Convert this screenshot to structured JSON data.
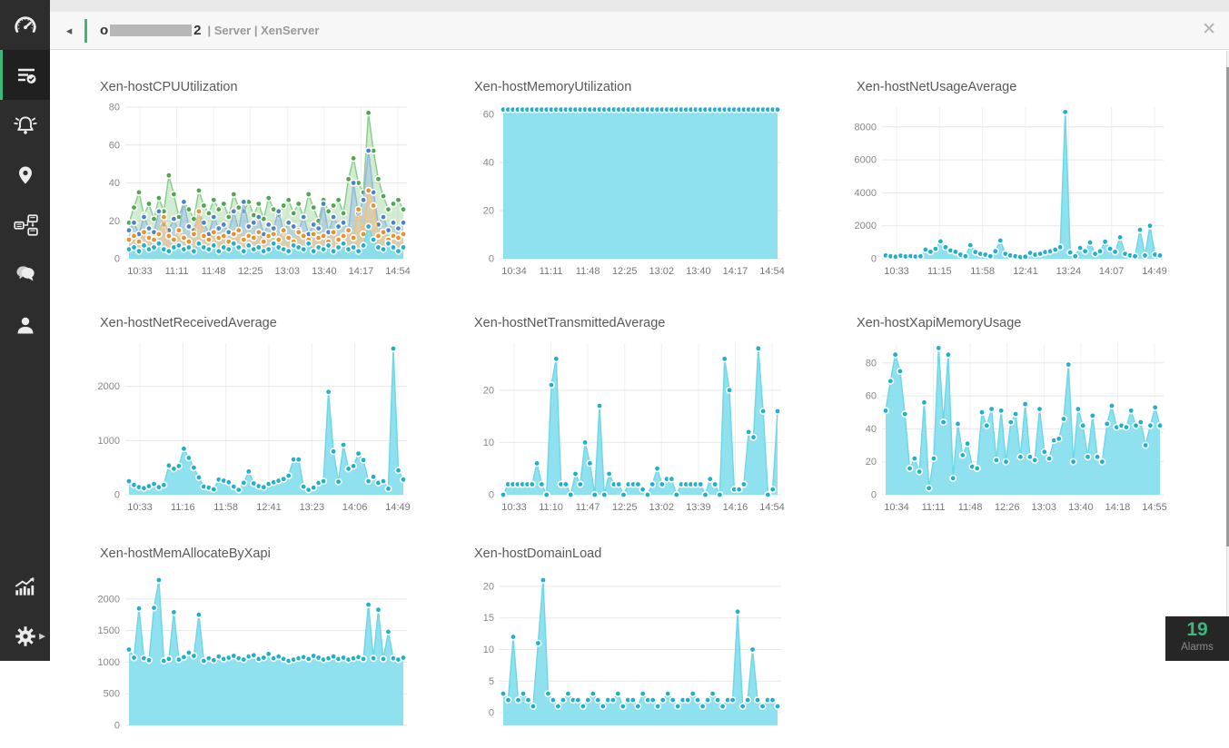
{
  "header": {
    "back_icon": "◂",
    "device_prefix": "o",
    "device_suffix": "2",
    "breadcrumb": "| Server | XenServer",
    "close_icon": "✕"
  },
  "sidebar": {
    "items": [
      {
        "name": "dashboard",
        "icon": "gauge-icon",
        "active": false
      },
      {
        "name": "inventory",
        "icon": "list-check-icon",
        "active": true
      },
      {
        "name": "alarms",
        "icon": "bell-icon",
        "active": false
      },
      {
        "name": "maps",
        "icon": "map-pin-icon",
        "active": false
      },
      {
        "name": "topology",
        "icon": "workflow-icon",
        "active": false
      },
      {
        "name": "chat",
        "icon": "chat-icon",
        "active": false
      },
      {
        "name": "users",
        "icon": "person-icon",
        "active": false
      },
      {
        "name": "reports",
        "icon": "chart-arrow-icon",
        "active": false
      },
      {
        "name": "settings",
        "icon": "gear-icon",
        "active": false
      }
    ]
  },
  "alarms": {
    "count": "19",
    "label": "Alarms"
  },
  "colors": {
    "accent_green": "#3cb878",
    "sidebar_bg": "#2d2d2d",
    "cyan_dot": "#1fb0ce",
    "green_dot": "#4fa84f",
    "blue_dot": "#4a86c5",
    "orange_dot": "#e8912d"
  },
  "chart_data": [
    {
      "type": "area",
      "title": "Xen-hostCPUUtilization",
      "x_labels": [
        "10:33",
        "11:11",
        "11:48",
        "12:25",
        "13:03",
        "13:40",
        "14:17",
        "14:54"
      ],
      "y_ticks": [
        0,
        20,
        40,
        60,
        80
      ],
      "ymin": 0,
      "ymax": 80,
      "series": [
        {
          "name": "green",
          "dot": "#4fa84f",
          "line": "#8ccf8c",
          "fill": "rgba(140,207,140,0.40)",
          "values": [
            19,
            27,
            35,
            23,
            29,
            21,
            32,
            25,
            44,
            34,
            22,
            30,
            26,
            21,
            36,
            28,
            24,
            31,
            26,
            29,
            22,
            34,
            27,
            25,
            30,
            23,
            29,
            21,
            32,
            26,
            23,
            28,
            31,
            24,
            29,
            22,
            34,
            27,
            20,
            31,
            25,
            28,
            31,
            24,
            42,
            53,
            40,
            35,
            77,
            57,
            42,
            33,
            26,
            29,
            31,
            26
          ]
        },
        {
          "name": "blue",
          "dot": "#4a86c5",
          "line": "#92b9e0",
          "fill": "rgba(146,185,224,0.45)",
          "values": [
            15,
            19,
            13,
            22,
            16,
            14,
            25,
            18,
            15,
            21,
            14,
            30,
            17,
            15,
            24,
            19,
            13,
            22,
            16,
            18,
            14,
            25,
            15,
            30,
            17,
            19,
            22,
            13,
            18,
            16,
            25,
            14,
            19,
            17,
            15,
            22,
            13,
            18,
            16,
            29,
            14,
            22,
            17,
            19,
            15,
            40,
            24,
            31,
            57,
            35,
            18,
            22,
            15,
            19,
            16,
            19
          ]
        },
        {
          "name": "orange",
          "dot": "#e8912d",
          "line": "#f3c07c",
          "fill": "rgba(247,199,138,0.55)",
          "values": [
            10,
            12,
            9,
            14,
            11,
            10,
            13,
            22,
            12,
            10,
            15,
            11,
            9,
            13,
            25,
            12,
            10,
            14,
            11,
            12,
            9,
            13,
            15,
            10,
            12,
            11,
            14,
            9,
            12,
            13,
            10,
            15,
            11,
            9,
            14,
            12,
            10,
            13,
            11,
            12,
            9,
            14,
            10,
            12,
            15,
            11,
            26,
            13,
            36,
            28,
            12,
            14,
            10,
            12,
            11,
            13
          ]
        },
        {
          "name": "cyan",
          "dot": "#1fb0ce",
          "line": "#6fd8e8",
          "fill": "rgba(134,222,238,0.92)",
          "values": [
            5,
            6,
            4,
            7,
            5,
            6,
            8,
            5,
            4,
            6,
            7,
            5,
            6,
            4,
            8,
            6,
            5,
            7,
            4,
            6,
            5,
            8,
            6,
            4,
            7,
            5,
            6,
            4,
            5,
            8,
            6,
            5,
            4,
            7,
            6,
            5,
            8,
            4,
            6,
            5,
            7,
            4,
            6,
            8,
            5,
            6,
            4,
            7,
            17,
            10,
            6,
            5,
            8,
            6,
            4,
            6
          ]
        }
      ]
    },
    {
      "type": "area",
      "title": "Xen-hostMemoryUtilization",
      "x_labels": [
        "10:34",
        "11:11",
        "11:48",
        "12:25",
        "13:02",
        "13:40",
        "14:17",
        "14:54"
      ],
      "y_ticks": [
        0,
        20,
        40,
        60
      ],
      "ymin": 0,
      "ymax": 63,
      "series": [
        {
          "name": "cyan",
          "dot": "#1fb0ce",
          "line": "#6fd8e8",
          "fill": "rgba(134,222,238,0.92)",
          "values": [
            62,
            62,
            62,
            62,
            62,
            62,
            62,
            62,
            62,
            62,
            62,
            62,
            62,
            62,
            62,
            62,
            62,
            62,
            62,
            62,
            62,
            62,
            62,
            62,
            62,
            62,
            62,
            62,
            62,
            62,
            62,
            62,
            62,
            62,
            62,
            62,
            62,
            62,
            62,
            62,
            62,
            62,
            62,
            62,
            62,
            62,
            62,
            62,
            62,
            62,
            62,
            62,
            62,
            62,
            62,
            62,
            62,
            62
          ]
        }
      ]
    },
    {
      "type": "area",
      "title": "Xen-hostNetUsageAverage",
      "x_labels": [
        "10:33",
        "11:15",
        "11:58",
        "12:41",
        "13:24",
        "14:07",
        "14:49"
      ],
      "y_ticks": [
        0,
        2000,
        4000,
        6000,
        8000
      ],
      "ymin": 0,
      "ymax": 9200,
      "series": [
        {
          "name": "cyan",
          "dot": "#1fb0ce",
          "line": "#6fd8e8",
          "fill": "rgba(134,222,238,0.92)",
          "values": [
            200,
            150,
            120,
            180,
            140,
            160,
            130,
            150,
            550,
            420,
            600,
            1050,
            700,
            500,
            420,
            250,
            150,
            820,
            400,
            300,
            250,
            150,
            450,
            1100,
            300,
            200,
            150,
            100,
            120,
            350,
            250,
            300,
            400,
            450,
            550,
            700,
            8900,
            380,
            150,
            650,
            450,
            980,
            300,
            450,
            1030,
            600,
            420,
            1300,
            300,
            200,
            150,
            1750,
            200,
            2000,
            250,
            200
          ]
        }
      ]
    },
    {
      "type": "area",
      "title": "Xen-hostNetReceivedAverage",
      "x_labels": [
        "10:33",
        "11:16",
        "11:58",
        "12:41",
        "13:23",
        "14:06",
        "14:49"
      ],
      "y_ticks": [
        0,
        1000,
        2000
      ],
      "ymin": 0,
      "ymax": 2800,
      "series": [
        {
          "name": "cyan",
          "dot": "#1fb0ce",
          "line": "#6fd8e8",
          "fill": "rgba(134,222,238,0.92)",
          "values": [
            250,
            180,
            140,
            120,
            160,
            200,
            140,
            180,
            540,
            480,
            530,
            850,
            680,
            500,
            320,
            150,
            130,
            100,
            280,
            260,
            230,
            150,
            90,
            220,
            430,
            210,
            160,
            140,
            200,
            230,
            260,
            290,
            350,
            650,
            650,
            150,
            90,
            130,
            220,
            250,
            1900,
            800,
            240,
            920,
            480,
            530,
            760,
            640,
            250,
            330,
            220,
            250,
            110,
            2700,
            450,
            280
          ]
        }
      ]
    },
    {
      "type": "area",
      "title": "Xen-hostNetTransmittedAverage",
      "x_labels": [
        "10:33",
        "11:10",
        "11:47",
        "12:25",
        "13:02",
        "13:39",
        "14:16",
        "14:54"
      ],
      "y_ticks": [
        0,
        10,
        20
      ],
      "ymin": 0,
      "ymax": 29,
      "series": [
        {
          "name": "cyan",
          "dot": "#1fb0ce",
          "line": "#6fd8e8",
          "fill": "rgba(134,222,238,0.92)",
          "values": [
            0,
            2,
            2,
            2,
            2,
            2,
            2,
            6,
            2,
            0,
            21,
            26,
            2,
            2,
            0,
            4,
            2,
            10,
            6,
            0,
            17,
            0,
            4,
            2,
            2,
            0,
            2,
            2,
            2,
            1,
            0,
            2,
            5,
            2,
            3,
            3,
            0,
            2,
            2,
            2,
            2,
            2,
            0,
            3,
            2,
            0,
            26,
            20,
            1,
            1,
            2,
            12,
            11,
            28,
            16,
            0,
            1,
            16
          ]
        }
      ]
    },
    {
      "type": "area",
      "title": "Xen-hostXapiMemoryUsage",
      "x_labels": [
        "10:34",
        "11:11",
        "11:48",
        "12:26",
        "13:03",
        "13:40",
        "14:18",
        "14:55"
      ],
      "y_ticks": [
        0,
        20,
        40,
        60,
        80
      ],
      "ymin": 0,
      "ymax": 92,
      "series": [
        {
          "name": "cyan",
          "dot": "#1fb0ce",
          "line": "#6fd8e8",
          "fill": "rgba(134,222,238,0.92)",
          "values": [
            51,
            69,
            85,
            75,
            49,
            16,
            22,
            14,
            56,
            4,
            22,
            89,
            44,
            85,
            10,
            43,
            24,
            31,
            17,
            16,
            50,
            42,
            52,
            21,
            51,
            20,
            44,
            49,
            23,
            55,
            23,
            21,
            52,
            26,
            22,
            33,
            34,
            46,
            79,
            20,
            52,
            42,
            23,
            48,
            23,
            20,
            43,
            54,
            41,
            42,
            41,
            51,
            42,
            44,
            30,
            42,
            53,
            42
          ]
        }
      ]
    },
    {
      "type": "area",
      "title": "Xen-hostMemAllocateByXapi",
      "x_labels": [],
      "y_ticks": [
        0,
        500,
        1000,
        1500,
        2000
      ],
      "ymin": 0,
      "ymax": 2400,
      "series": [
        {
          "name": "cyan",
          "dot": "#1fb0ce",
          "line": "#6fd8e8",
          "fill": "rgba(134,222,238,0.92)",
          "values": [
            1200,
            1070,
            1850,
            1060,
            1030,
            1860,
            2300,
            1020,
            1050,
            1790,
            1040,
            1080,
            1150,
            1100,
            1750,
            1020,
            1060,
            1030,
            1090,
            1050,
            1070,
            1100,
            1060,
            1040,
            1090,
            1110,
            1050,
            1070,
            1130,
            1060,
            1090,
            1050,
            1020,
            1040,
            1060,
            1080,
            1050,
            1100,
            1070,
            1040,
            1060,
            1090,
            1050,
            1070,
            1040,
            1060,
            1080,
            1050,
            1910,
            1060,
            1830,
            1050,
            1480,
            1060,
            1040,
            1070
          ]
        }
      ]
    },
    {
      "type": "area",
      "title": "Xen-hostDomainLoad",
      "x_labels": [],
      "y_ticks": [
        0,
        5,
        10,
        15,
        20
      ],
      "ymin": -2,
      "ymax": 22,
      "series": [
        {
          "name": "cyan",
          "dot": "#1fb0ce",
          "line": "#6fd8e8",
          "fill": "rgba(134,222,238,0.92)",
          "values": [
            3,
            2,
            12,
            2,
            3,
            2,
            1,
            11,
            21,
            3,
            2,
            1,
            2,
            3,
            2,
            2,
            1,
            2,
            3,
            2,
            1,
            2,
            2,
            3,
            1,
            2,
            2,
            1,
            3,
            2,
            2,
            1,
            2,
            3,
            2,
            1,
            2,
            2,
            3,
            2,
            1,
            2,
            3,
            2,
            1,
            2,
            2,
            16,
            1,
            2,
            10,
            2,
            1,
            2,
            2,
            1
          ]
        }
      ]
    }
  ]
}
